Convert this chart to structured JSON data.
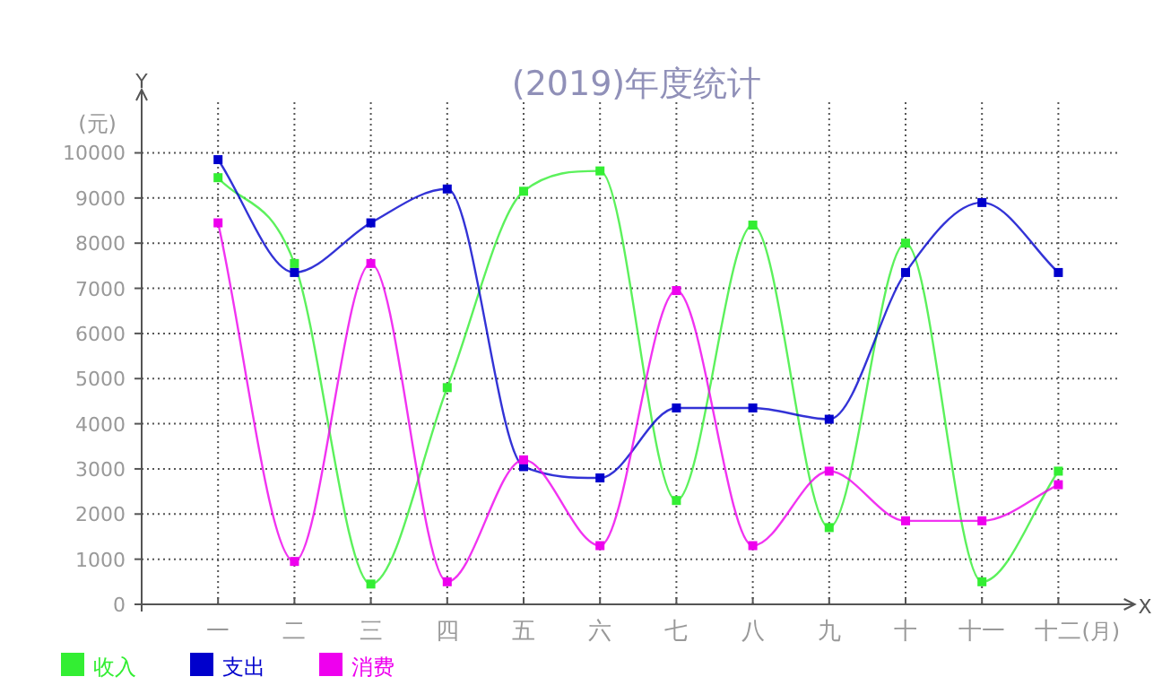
{
  "chart_data": {
    "type": "line",
    "title": "(2019)年度统计",
    "xlabel": "(月)",
    "ylabel": "(元)",
    "annotations": [
      "X",
      "Y"
    ],
    "categories": [
      "一",
      "二",
      "三",
      "四",
      "五",
      "六",
      "七",
      "八",
      "九",
      "十",
      "十一",
      "十二"
    ],
    "series": [
      {
        "name": "收入",
        "color": "#33ee33",
        "values": [
          9450,
          7550,
          450,
          4800,
          9150,
          9600,
          2300,
          8400,
          1700,
          8000,
          500,
          2950
        ]
      },
      {
        "name": "支出",
        "color": "#0000cc",
        "values": [
          9850,
          7350,
          8450,
          9200,
          3050,
          2800,
          4350,
          4350,
          4100,
          7350,
          8900,
          7350
        ]
      },
      {
        "name": "消费",
        "color": "#ee00ee",
        "values": [
          8450,
          950,
          7550,
          500,
          3200,
          1300,
          6950,
          1300,
          2950,
          1850,
          1850,
          2650
        ]
      }
    ],
    "ylim": [
      0,
      11400
    ],
    "yticks": [
      0,
      1000,
      2000,
      3000,
      4000,
      5000,
      6000,
      7000,
      8000,
      9000,
      10000
    ],
    "grid": true,
    "legend": "bottom left",
    "marker": "square",
    "line_style": "solid"
  }
}
